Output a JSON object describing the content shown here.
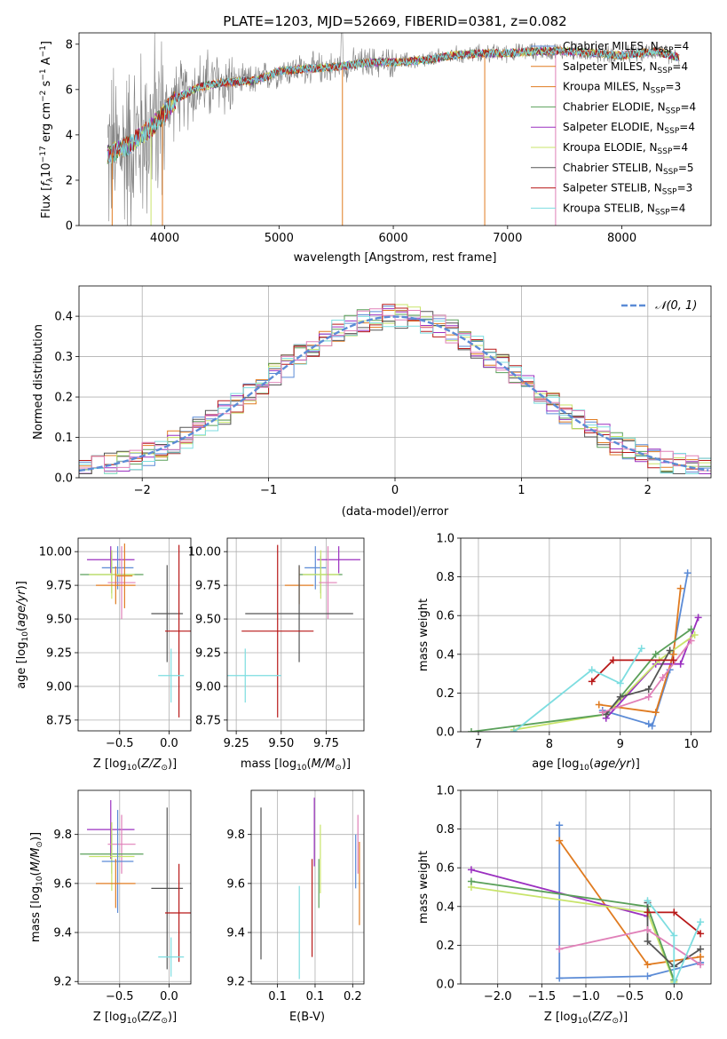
{
  "figure_title": "PLATE=1203, MJD=52669, FIBERID=0381, z=0.082",
  "colors": {
    "chabrier_miles": "#5b8bd6",
    "salpeter_miles": "#e07b20",
    "kroupa_miles": "#e07b20",
    "chabrier_elodie": "#5aa05a",
    "salpeter_elodie": "#9b30c0",
    "kroupa_elodie": "#c8e46a",
    "chabrier_stelib": "#555555",
    "salpeter_stelib": "#b81818",
    "kroupa_stelib": "#7ddde0",
    "extra_pink": "#e080b8",
    "data_gray": "#808080",
    "normal_curve": "#5b8bd6"
  },
  "chart_data": [
    {
      "id": "spectrum",
      "type": "line",
      "xlabel": "wavelength [Angstrom, rest frame]",
      "ylabel_main": "Flux [f",
      "ylabel_rest": "10",
      "ylabel_tail": " erg cm",
      "ylabel_tail2": " s",
      "ylabel_tail3": " A",
      "ylabel_end": "]",
      "xlim": [
        3250,
        8780
      ],
      "ylim": [
        0,
        8.5
      ],
      "xticks": [
        4000,
        5000,
        6000,
        7000,
        8000
      ],
      "yticks": [
        0,
        2,
        4,
        6,
        8
      ],
      "legend": [
        {
          "label": "Chabrier MILES, N",
          "sub": "SSP",
          "tail": "=4",
          "color": "#5b8bd6"
        },
        {
          "label": "Salpeter MILES, N",
          "sub": "SSP",
          "tail": "=4",
          "color": "#e07b20"
        },
        {
          "label": "Kroupa MILES, N",
          "sub": "SSP",
          "tail": "=3",
          "color": "#e07b20"
        },
        {
          "label": "Chabrier ELODIE, N",
          "sub": "SSP",
          "tail": "=4",
          "color": "#5aa05a"
        },
        {
          "label": "Salpeter ELODIE, N",
          "sub": "SSP",
          "tail": "=4",
          "color": "#9b30c0"
        },
        {
          "label": "Kroupa ELODIE, N",
          "sub": "SSP",
          "tail": "=4",
          "color": "#c8e46a"
        },
        {
          "label": "Chabrier STELIB, N",
          "sub": "SSP",
          "tail": "=5",
          "color": "#555555"
        },
        {
          "label": "Salpeter STELIB, N",
          "sub": "SSP",
          "tail": "=3",
          "color": "#b81818"
        },
        {
          "label": "Kroupa STELIB, N",
          "sub": "SSP",
          "tail": "=4",
          "color": "#7ddde0"
        }
      ],
      "model_continuum": {
        "x": [
          3500,
          3700,
          3900,
          4000,
          4100,
          4300,
          4500,
          4800,
          5000,
          5200,
          5500,
          5800,
          6000,
          6300,
          6500,
          6800,
          7000,
          7300,
          7500,
          8000,
          8300,
          8500
        ],
        "y": [
          3.1,
          3.6,
          4.4,
          5.0,
          5.6,
          6.1,
          6.3,
          6.4,
          6.8,
          6.9,
          7.0,
          7.2,
          7.2,
          7.3,
          7.5,
          7.6,
          7.6,
          7.7,
          7.7,
          7.5,
          7.7,
          7.4
        ]
      }
    },
    {
      "id": "residuals",
      "type": "bar",
      "xlabel": "(data-model)/error",
      "ylabel": "Normed distribution",
      "xlim": [
        -2.5,
        2.5
      ],
      "ylim": [
        0,
        0.475
      ],
      "xticks": [
        -2,
        -1,
        0,
        1,
        2
      ],
      "yticks": [
        0.0,
        0.1,
        0.2,
        0.3,
        0.4
      ],
      "legend_label": "𝒩(0, 1)",
      "bin_width": 0.1,
      "bin_start": -2.5
    },
    {
      "id": "age_vs_Z",
      "type": "scatter",
      "xlabel": "Z [log",
      "xlabel_tail": "(Z/Z",
      "xlabel_end": ")]",
      "ylabel": "age  [log",
      "ylabel_tail": "(age/yr)]",
      "xlim": [
        -0.92,
        0.22
      ],
      "ylim": [
        8.67,
        10.1
      ],
      "xticks": [
        -0.5,
        0.0
      ],
      "yticks": [
        8.75,
        9.0,
        9.25,
        9.5,
        9.75,
        10.0
      ],
      "points": [
        {
          "x": -0.59,
          "y": 9.94,
          "xe": 0.24,
          "ye": 0.1,
          "c": "#9b30c0"
        },
        {
          "x": -0.52,
          "y": 9.88,
          "xe": 0.16,
          "ye": 0.16,
          "c": "#5b8bd6"
        },
        {
          "x": -0.58,
          "y": 9.83,
          "xe": 0.32,
          "ye": 0.14,
          "c": "#5aa05a"
        },
        {
          "x": -0.58,
          "y": 9.83,
          "xe": 0.23,
          "ye": 0.18,
          "c": "#c8e46a"
        },
        {
          "x": -0.48,
          "y": 9.77,
          "xe": 0.14,
          "ye": 0.27,
          "c": "#e080b8"
        },
        {
          "x": -0.54,
          "y": 9.75,
          "xe": 0.2,
          "ye": 0.14,
          "c": "#e07b20"
        },
        {
          "x": -0.45,
          "y": 9.82,
          "xe": 0.08,
          "ye": 0.24,
          "c": "#e07b20"
        },
        {
          "x": -0.02,
          "y": 9.54,
          "xe": 0.16,
          "ye": 0.36,
          "c": "#555555"
        },
        {
          "x": 0.1,
          "y": 9.41,
          "xe": 0.14,
          "ye": 0.64,
          "c": "#b81818"
        },
        {
          "x": 0.02,
          "y": 9.08,
          "xe": 0.13,
          "ye": 0.2,
          "c": "#7ddde0"
        }
      ]
    },
    {
      "id": "age_vs_mass",
      "type": "scatter",
      "xlabel": "mass [log",
      "xlabel_tail": "(M/M",
      "xlabel_end": ")]",
      "xlim": [
        9.2,
        9.96
      ],
      "ylim": [
        8.67,
        10.1
      ],
      "xticks": [
        9.25,
        9.5,
        9.75
      ],
      "yticks": [
        8.75,
        9.0,
        9.25,
        9.5,
        9.75,
        10.0
      ],
      "points": [
        {
          "x": 9.82,
          "y": 9.94,
          "xe": 0.12,
          "ye": 0.1,
          "c": "#9b30c0"
        },
        {
          "x": 9.69,
          "y": 9.88,
          "xe": 0.06,
          "ye": 0.16,
          "c": "#5b8bd6"
        },
        {
          "x": 9.72,
          "y": 9.83,
          "xe": 0.12,
          "ye": 0.14,
          "c": "#5aa05a"
        },
        {
          "x": 9.72,
          "y": 9.83,
          "xe": 0.1,
          "ye": 0.18,
          "c": "#c8e46a"
        },
        {
          "x": 9.76,
          "y": 9.77,
          "xe": 0.05,
          "ye": 0.27,
          "c": "#e080b8"
        },
        {
          "x": 9.6,
          "y": 9.75,
          "xe": 0.08,
          "ye": 0.14,
          "c": "#e07b20"
        },
        {
          "x": 9.6,
          "y": 9.54,
          "xe": 0.3,
          "ye": 0.36,
          "c": "#555555"
        },
        {
          "x": 9.48,
          "y": 9.41,
          "xe": 0.2,
          "ye": 0.64,
          "c": "#b81818"
        },
        {
          "x": 9.3,
          "y": 9.08,
          "xe": 0.2,
          "ye": 0.2,
          "c": "#7ddde0"
        }
      ]
    },
    {
      "id": "weight_vs_age",
      "type": "line",
      "xlabel": "age  [log",
      "xlabel_tail": "(age/yr)]",
      "ylabel": "mass weight",
      "xlim": [
        6.75,
        10.28
      ],
      "ylim": [
        0,
        1.0
      ],
      "xticks": [
        7,
        8,
        9,
        10
      ],
      "yticks": [
        0.0,
        0.2,
        0.4,
        0.6,
        0.8,
        1.0
      ],
      "series": [
        {
          "c": "#5b8bd6",
          "x": [
            8.75,
            9.4,
            9.45,
            9.7,
            9.95
          ],
          "y": [
            0.11,
            0.04,
            0.03,
            0.32,
            0.82
          ]
        },
        {
          "c": "#e07b20",
          "x": [
            8.7,
            9.5,
            9.75,
            9.85
          ],
          "y": [
            0.14,
            0.1,
            0.4,
            0.74
          ]
        },
        {
          "c": "#9b30c0",
          "x": [
            8.8,
            9.5,
            9.85,
            10.1
          ],
          "y": [
            0.07,
            0.35,
            0.35,
            0.59
          ]
        },
        {
          "c": "#c8e46a",
          "x": [
            7.5,
            8.8,
            9.55,
            10.05
          ],
          "y": [
            0.01,
            0.09,
            0.37,
            0.5
          ]
        },
        {
          "c": "#5aa05a",
          "x": [
            6.9,
            8.8,
            9.5,
            10.0
          ],
          "y": [
            0.0,
            0.09,
            0.4,
            0.53
          ]
        },
        {
          "c": "#555555",
          "x": [
            8.8,
            9.0,
            9.4,
            9.7
          ],
          "y": [
            0.09,
            0.18,
            0.22,
            0.42
          ]
        },
        {
          "c": "#e080b8",
          "x": [
            8.75,
            9.4,
            9.6,
            10.0
          ],
          "y": [
            0.1,
            0.18,
            0.28,
            0.47
          ]
        },
        {
          "c": "#b81818",
          "x": [
            8.6,
            8.9,
            9.75
          ],
          "y": [
            0.26,
            0.37,
            0.37
          ]
        },
        {
          "c": "#7ddde0",
          "x": [
            7.5,
            8.6,
            9.0,
            9.3
          ],
          "y": [
            0.0,
            0.32,
            0.25,
            0.43
          ]
        }
      ]
    },
    {
      "id": "mass_vs_Z",
      "type": "scatter",
      "xlabel": "Z [log",
      "xlabel_tail": "(Z/Z",
      "xlabel_end": ")]",
      "ylabel": "mass [log",
      "ylabel_tail": "(M/M",
      "ylabel_end": ")]",
      "xlim": [
        -0.92,
        0.22
      ],
      "ylim": [
        9.19,
        9.98
      ],
      "xticks": [
        -0.5,
        0.0
      ],
      "yticks": [
        9.2,
        9.4,
        9.6,
        9.8
      ],
      "points": [
        {
          "x": -0.59,
          "y": 9.82,
          "xe": 0.24,
          "ye": 0.12,
          "c": "#9b30c0"
        },
        {
          "x": -0.48,
          "y": 9.76,
          "xe": 0.14,
          "ye": 0.12,
          "c": "#e080b8"
        },
        {
          "x": -0.58,
          "y": 9.72,
          "xe": 0.32,
          "ye": 0.08,
          "c": "#5aa05a"
        },
        {
          "x": -0.58,
          "y": 9.71,
          "xe": 0.23,
          "ye": 0.14,
          "c": "#c8e46a"
        },
        {
          "x": -0.52,
          "y": 9.69,
          "xe": 0.16,
          "ye": 0.21,
          "c": "#5b8bd6"
        },
        {
          "x": -0.54,
          "y": 9.6,
          "xe": 0.2,
          "ye": 0.1,
          "c": "#e07b20"
        },
        {
          "x": -0.02,
          "y": 9.58,
          "xe": 0.16,
          "ye": 0.33,
          "c": "#555555"
        },
        {
          "x": 0.1,
          "y": 9.48,
          "xe": 0.14,
          "ye": 0.2,
          "c": "#b81818"
        },
        {
          "x": 0.02,
          "y": 9.3,
          "xe": 0.13,
          "ye": 0.08,
          "c": "#7ddde0"
        }
      ]
    },
    {
      "id": "mass_vs_ebv",
      "type": "scatter",
      "xlabel": "E(B-V)",
      "xlim": [
        0.065,
        0.215
      ],
      "ylim": [
        9.19,
        9.98
      ],
      "xticks": [
        0.1,
        0.15,
        0.2
      ],
      "yticks": [
        9.2,
        9.4,
        9.6,
        9.8
      ],
      "points": [
        {
          "x": 0.078,
          "y": 9.6,
          "xe": 0.0,
          "ye": 0.31,
          "c": "#555555"
        },
        {
          "x": 0.129,
          "y": 9.4,
          "xe": 0.0,
          "ye": 0.19,
          "c": "#7ddde0"
        },
        {
          "x": 0.146,
          "y": 9.5,
          "xe": 0.0,
          "ye": 0.2,
          "c": "#b81818"
        },
        {
          "x": 0.149,
          "y": 9.81,
          "xe": 0.0,
          "ye": 0.14,
          "c": "#9b30c0"
        },
        {
          "x": 0.157,
          "y": 9.7,
          "xe": 0.0,
          "ye": 0.14,
          "c": "#c8e46a"
        },
        {
          "x": 0.155,
          "y": 9.6,
          "xe": 0.0,
          "ye": 0.1,
          "c": "#5aa05a"
        },
        {
          "x": 0.204,
          "y": 9.69,
          "xe": 0.0,
          "ye": 0.11,
          "c": "#5b8bd6"
        },
        {
          "x": 0.207,
          "y": 9.76,
          "xe": 0.0,
          "ye": 0.12,
          "c": "#e080b8"
        },
        {
          "x": 0.209,
          "y": 9.6,
          "xe": 0.0,
          "ye": 0.17,
          "c": "#e07b20"
        }
      ]
    },
    {
      "id": "weight_vs_Z",
      "type": "line",
      "xlabel": "Z [log",
      "xlabel_tail": "(Z/Z",
      "xlabel_end": ")]",
      "ylabel": "mass weight",
      "xlim": [
        -2.42,
        0.42
      ],
      "ylim": [
        0,
        1.0
      ],
      "xticks": [
        -2.0,
        -1.5,
        -1.0,
        -0.5,
        0.0
      ],
      "yticks": [
        0.0,
        0.2,
        0.4,
        0.6,
        0.8,
        1.0
      ],
      "series": [
        {
          "c": "#5b8bd6",
          "x": [
            -1.3,
            -1.3,
            -0.3,
            0.3,
            0.3
          ],
          "y": [
            0.82,
            0.03,
            0.04,
            0.11,
            0.11
          ]
        },
        {
          "c": "#e07b20",
          "x": [
            -1.3,
            -0.3,
            0.3,
            0.3
          ],
          "y": [
            0.74,
            0.1,
            0.14,
            0.14
          ]
        },
        {
          "c": "#9b30c0",
          "x": [
            -2.3,
            -0.3,
            -0.3
          ],
          "y": [
            0.59,
            0.35,
            0.35
          ]
        },
        {
          "c": "#c8e46a",
          "x": [
            -2.3,
            -0.3,
            0.0
          ],
          "y": [
            0.5,
            0.37,
            0.01
          ]
        },
        {
          "c": "#5aa05a",
          "x": [
            -2.3,
            -0.3,
            0.0
          ],
          "y": [
            0.53,
            0.4,
            0.02
          ]
        },
        {
          "c": "#555555",
          "x": [
            -0.3,
            -0.3,
            0.0,
            0.3
          ],
          "y": [
            0.42,
            0.22,
            0.09,
            0.18
          ]
        },
        {
          "c": "#e080b8",
          "x": [
            -1.3,
            -0.3,
            0.3
          ],
          "y": [
            0.18,
            0.28,
            0.1
          ]
        },
        {
          "c": "#b81818",
          "x": [
            -0.3,
            0.0,
            0.3
          ],
          "y": [
            0.37,
            0.37,
            0.26
          ]
        },
        {
          "c": "#7ddde0",
          "x": [
            -0.3,
            0.0,
            0.0,
            0.3
          ],
          "y": [
            0.43,
            0.25,
            0.0,
            0.32
          ]
        }
      ]
    }
  ]
}
